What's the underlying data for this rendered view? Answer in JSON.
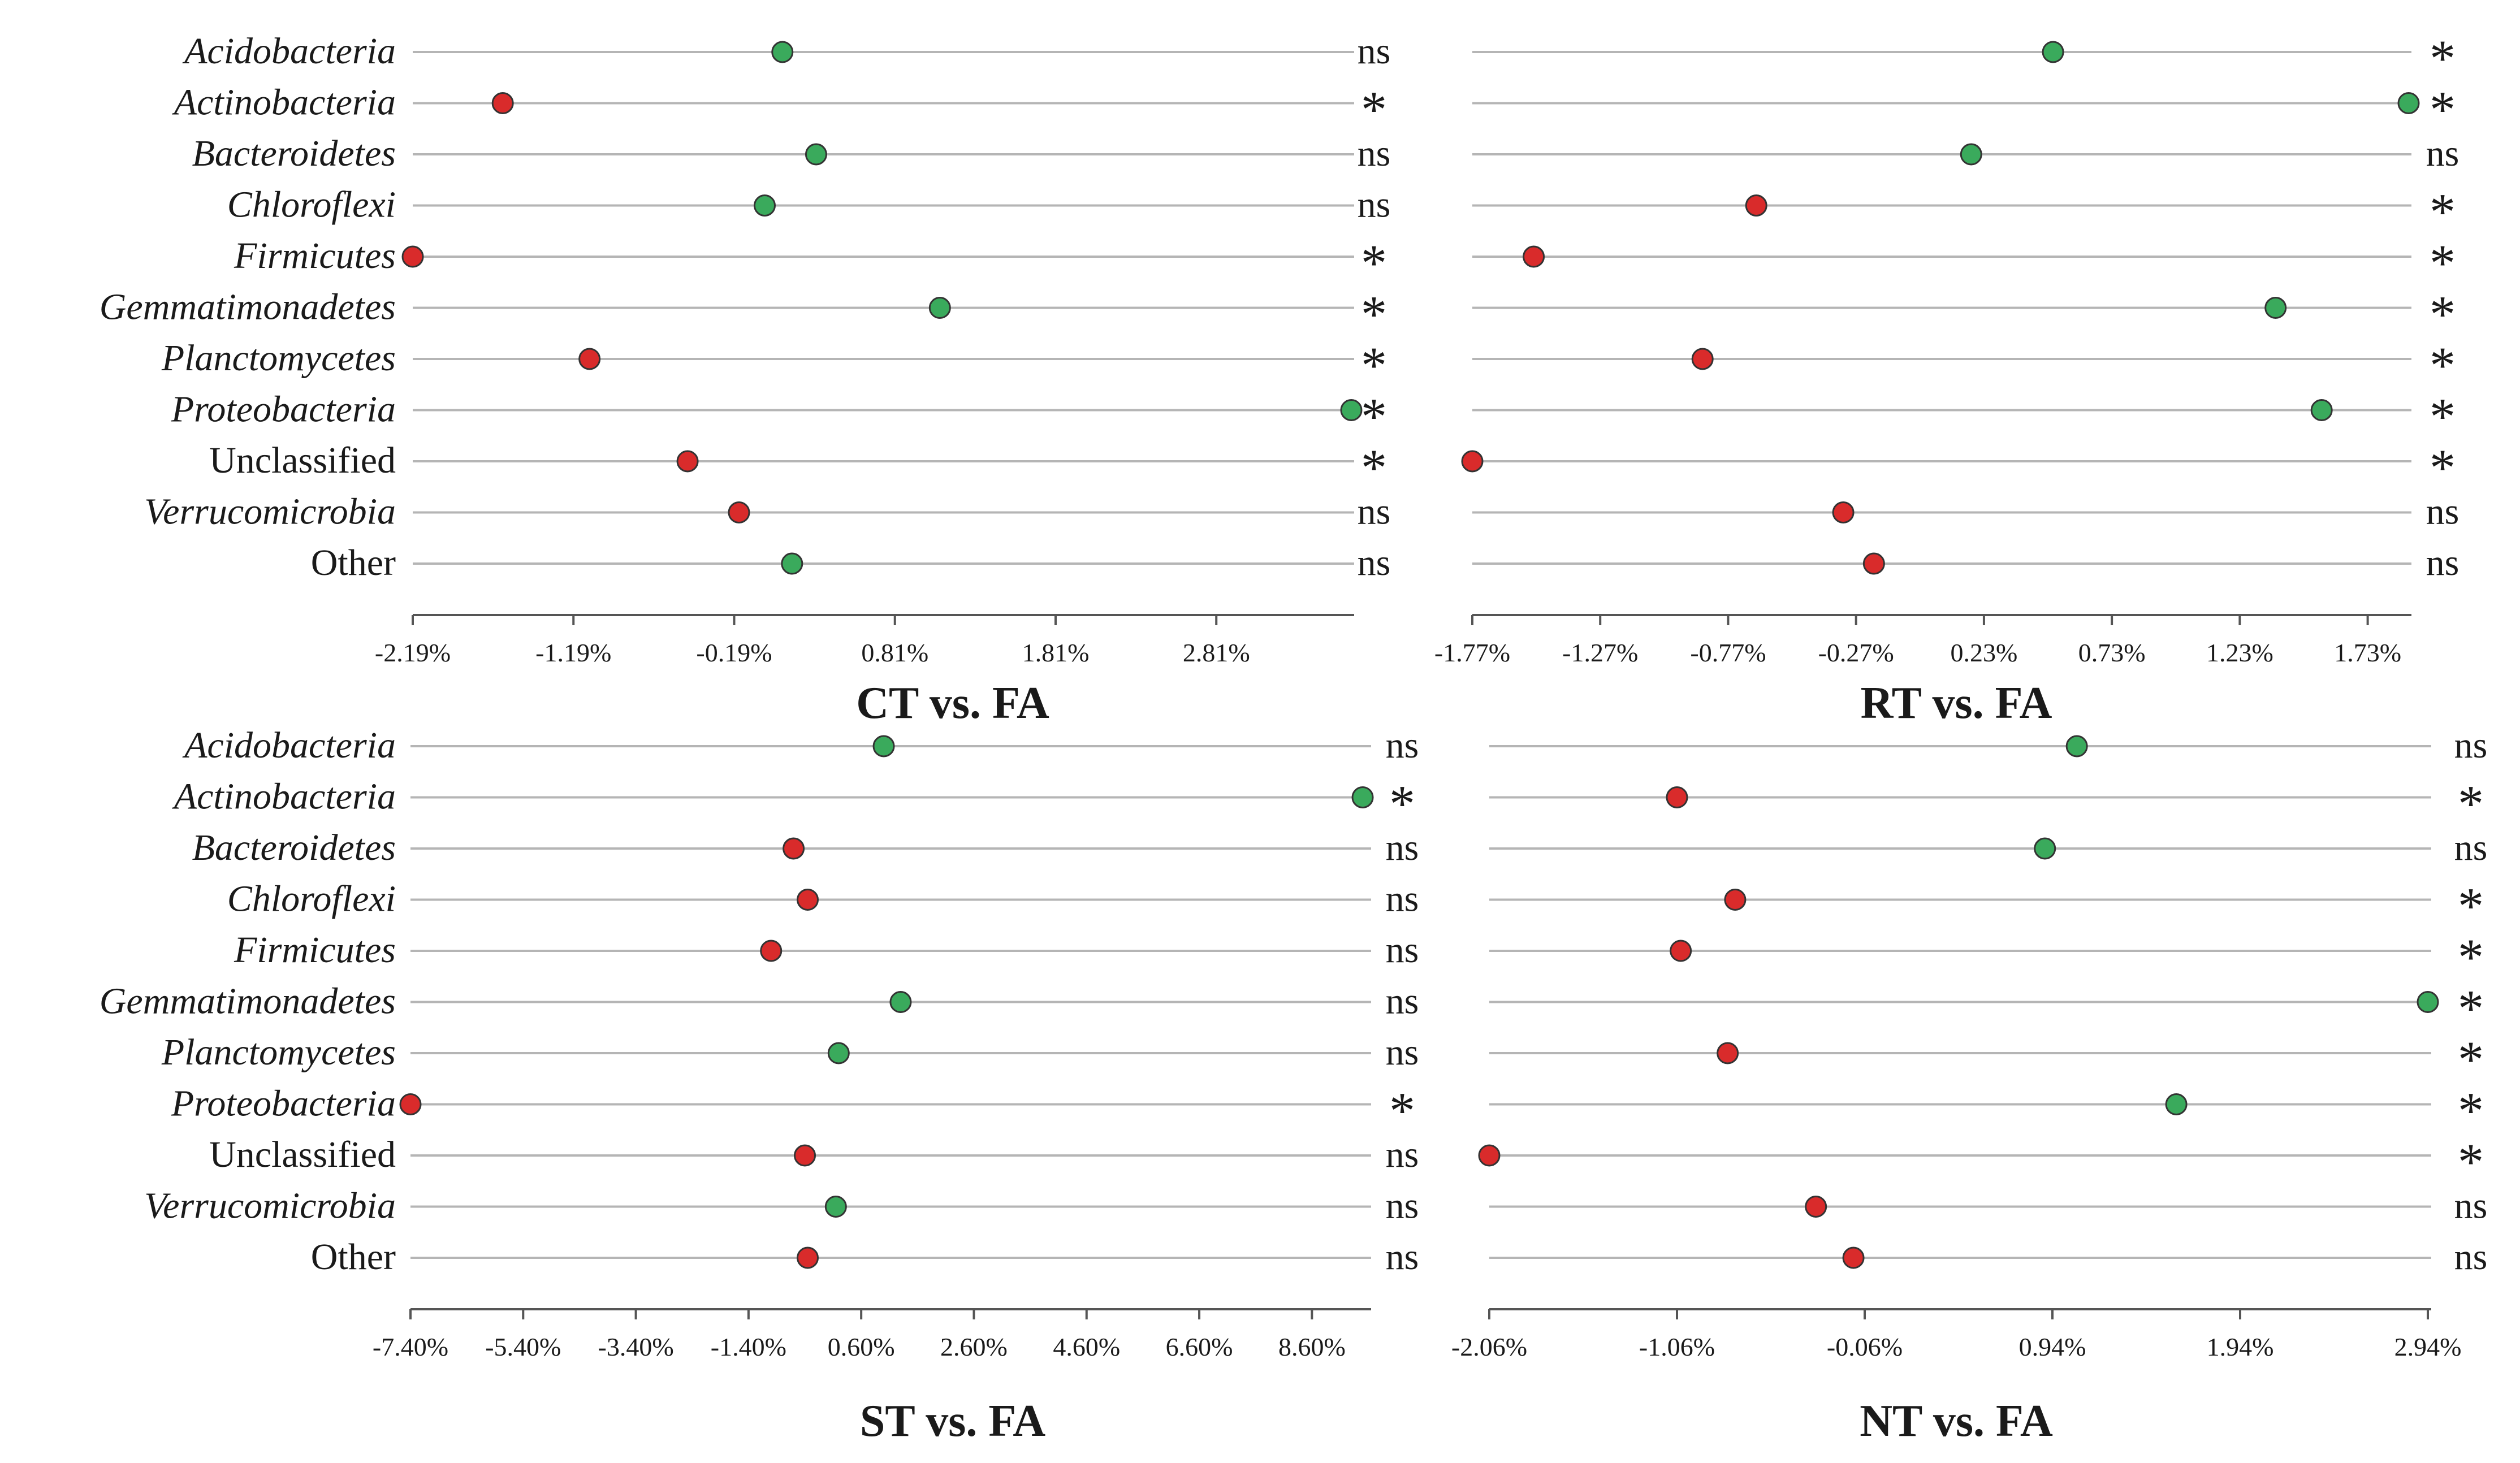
{
  "colors": {
    "increase": "#3aaa5c",
    "decrease": "#d92b2b",
    "line": "#b5b5b5",
    "axis": "#555555",
    "text": "#1a1a1a"
  },
  "chart_data": [
    {
      "type": "scatter",
      "title": "CT vs. FA",
      "categories": [
        "Acidobacteria",
        "Actinobacteria",
        "Bacteroidetes",
        "Chloroflexi",
        "Firmicutes",
        "Gemmatimonadetes",
        "Planctomycetes",
        "Proteobacteria",
        "Unclassified",
        "Verrucomicrobia",
        "Other"
      ],
      "italic": [
        true,
        true,
        true,
        true,
        true,
        true,
        true,
        true,
        false,
        true,
        false
      ],
      "values": [
        0.11,
        -1.63,
        0.32,
        0.0,
        -2.19,
        1.09,
        -1.09,
        3.65,
        -0.48,
        -0.16,
        0.17
      ],
      "significance": [
        "ns",
        "*",
        "ns",
        "ns",
        "*",
        "*",
        "*",
        "*",
        "*",
        "ns",
        "ns"
      ],
      "x_ticks": [
        "-2.19%",
        "-1.19%",
        "-0.19%",
        "0.81%",
        "1.81%",
        "2.81%"
      ],
      "xlim": [
        -2.19,
        3.65
      ]
    },
    {
      "type": "scatter",
      "title": "RT vs. FA",
      "categories": [
        "Acidobacteria",
        "Actinobacteria",
        "Bacteroidetes",
        "Chloroflexi",
        "Firmicutes",
        "Gemmatimonadetes",
        "Planctomycetes",
        "Proteobacteria",
        "Unclassified",
        "Verrucomicrobia",
        "Other"
      ],
      "italic": [
        true,
        true,
        true,
        true,
        true,
        true,
        true,
        true,
        false,
        true,
        false
      ],
      "values": [
        0.5,
        1.89,
        0.18,
        -0.66,
        -1.53,
        1.37,
        -0.87,
        1.55,
        -1.77,
        -0.32,
        -0.2
      ],
      "significance": [
        "*",
        "*",
        "ns",
        "*",
        "*",
        "*",
        "*",
        "*",
        "*",
        "ns",
        "ns"
      ],
      "x_ticks": [
        "-1.77%",
        "-1.27%",
        "-0.77%",
        "-0.27%",
        "0.23%",
        "0.73%",
        "1.23%",
        "1.73%"
      ],
      "xlim": [
        -1.77,
        1.89
      ]
    },
    {
      "type": "scatter",
      "title": "ST vs. FA",
      "categories": [
        "Acidobacteria",
        "Actinobacteria",
        "Bacteroidetes",
        "Chloroflexi",
        "Firmicutes",
        "Gemmatimonadetes",
        "Planctomycetes",
        "Proteobacteria",
        "Unclassified",
        "Verrucomicrobia",
        "Other"
      ],
      "italic": [
        true,
        true,
        true,
        true,
        true,
        true,
        true,
        true,
        false,
        true,
        false
      ],
      "values": [
        1.0,
        9.5,
        -0.6,
        -0.35,
        -1.0,
        1.3,
        0.2,
        -7.4,
        -0.4,
        0.15,
        -0.35
      ],
      "significance": [
        "ns",
        "*",
        "ns",
        "ns",
        "ns",
        "ns",
        "ns",
        "*",
        "ns",
        "ns",
        "ns"
      ],
      "x_ticks": [
        "-7.40%",
        "-5.40%",
        "-3.40%",
        "-1.40%",
        "0.60%",
        "2.60%",
        "4.60%",
        "6.60%",
        "8.60%"
      ],
      "xlim": [
        -7.4,
        9.6
      ]
    },
    {
      "type": "scatter",
      "title": "NT vs. FA",
      "categories": [
        "Acidobacteria",
        "Actinobacteria",
        "Bacteroidetes",
        "Chloroflexi",
        "Firmicutes",
        "Gemmatimonadetes",
        "Planctomycetes",
        "Proteobacteria",
        "Unclassified",
        "Verrucomicrobia",
        "Other"
      ],
      "italic": [
        true,
        true,
        true,
        true,
        true,
        true,
        true,
        true,
        false,
        true,
        false
      ],
      "values": [
        1.07,
        -1.06,
        0.9,
        -0.75,
        -1.04,
        2.94,
        -0.79,
        1.6,
        -2.06,
        -0.32,
        -0.12
      ],
      "significance": [
        "ns",
        "*",
        "ns",
        "*",
        "*",
        "*",
        "*",
        "*",
        "*",
        "ns",
        "ns"
      ],
      "x_ticks": [
        "-2.06%",
        "-1.06%",
        "-0.06%",
        "0.94%",
        "1.94%",
        "2.94%"
      ],
      "xlim": [
        -2.06,
        2.94
      ]
    }
  ]
}
